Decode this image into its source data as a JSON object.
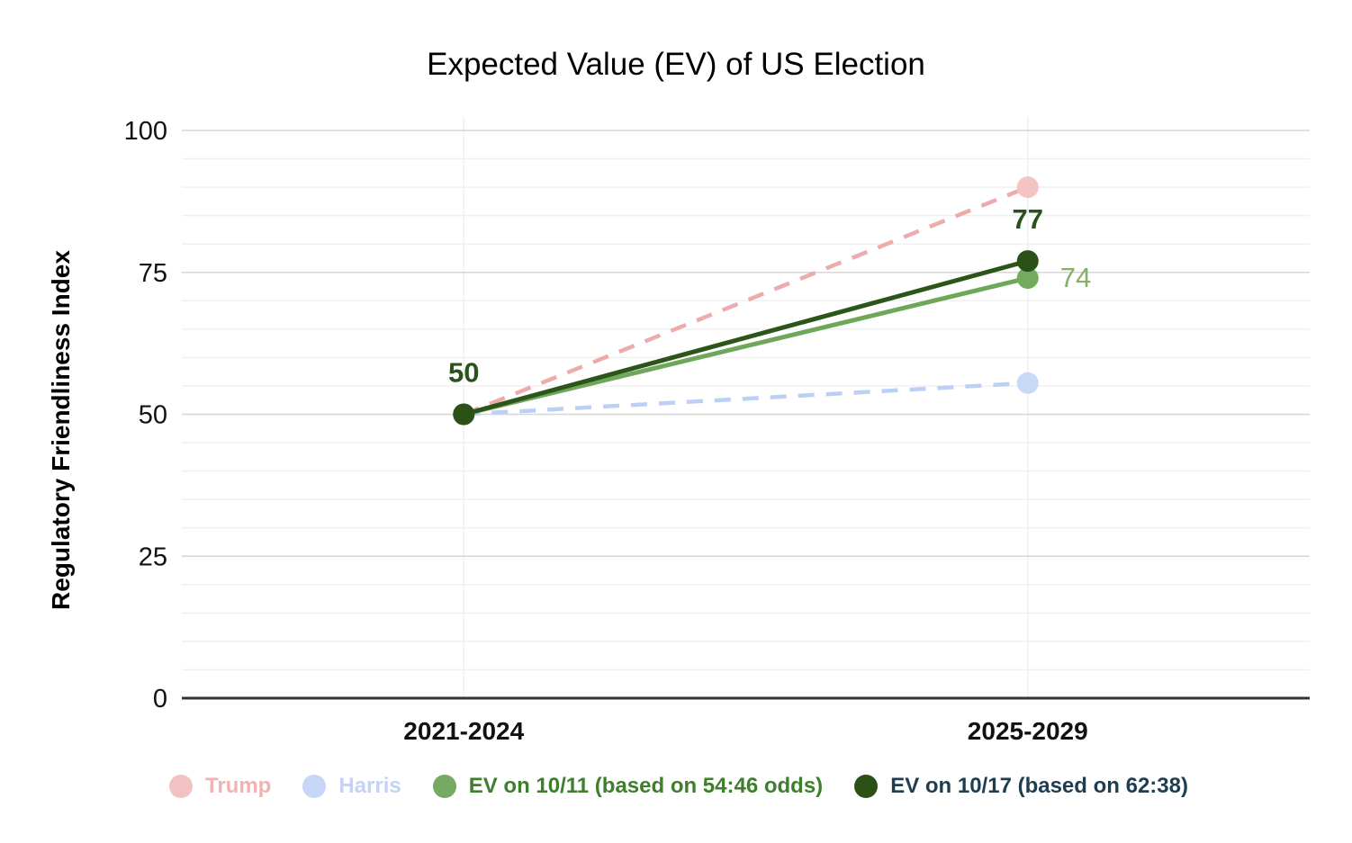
{
  "chart_data": {
    "type": "line",
    "title": "Expected Value (EV) of US Election",
    "ylabel": "Regulatory Friendliness Index",
    "xlabel": "",
    "categories": [
      "2021-2024",
      "2025-2029"
    ],
    "ylim": [
      0,
      100
    ],
    "yticks": [
      0,
      25,
      50,
      75,
      100
    ],
    "minor_gridline_step": 5,
    "grid": true,
    "legend_position": "bottom",
    "colors": {
      "axis_line": "#333333",
      "major_gridline": "#D6D6D6",
      "minor_gridline": "#F0F0F0",
      "vertical_gridline": "#F0F0F0",
      "tick_label": "#111111",
      "title": "#000000"
    },
    "series": [
      {
        "name": "Trump",
        "values": [
          50,
          90
        ],
        "style": "dashed",
        "line_color": "#EDABAB",
        "point_color": "#F3C4C4",
        "legend_dot_color": "#F2C1C1",
        "legend_text_color": "#F0B2B2",
        "point_labels": [
          null,
          null
        ]
      },
      {
        "name": "Harris",
        "values": [
          50,
          55.5
        ],
        "style": "dashed",
        "line_color": "#BCD0F5",
        "point_color": "#C8D8F7",
        "legend_dot_color": "#C6D6F6",
        "legend_text_color": "#C3D3F5",
        "point_labels": [
          null,
          null
        ]
      },
      {
        "name": "EV on 10/11 (based on 54:46 odds)",
        "values": [
          50,
          74
        ],
        "style": "solid",
        "line_color": "#6FA75A",
        "point_color": "#74AA5E",
        "legend_dot_color": "#76A961",
        "legend_text_color": "#3E7E2D",
        "point_labels": [
          null,
          {
            "text": "74",
            "color": "#87AF6C",
            "bold": false,
            "position": "right"
          }
        ]
      },
      {
        "name": "EV on 10/17 (based on 62:38)",
        "values": [
          50,
          77
        ],
        "style": "solid",
        "line_color": "#2C5519",
        "point_color": "#2B5117",
        "legend_dot_color": "#2B5117",
        "legend_text_color": "#1F3D50",
        "point_labels": [
          {
            "text": "50",
            "color": "#2B511C",
            "bold": true,
            "position": "above"
          },
          {
            "text": "77",
            "color": "#2B511C",
            "bold": true,
            "position": "above"
          }
        ]
      }
    ]
  }
}
